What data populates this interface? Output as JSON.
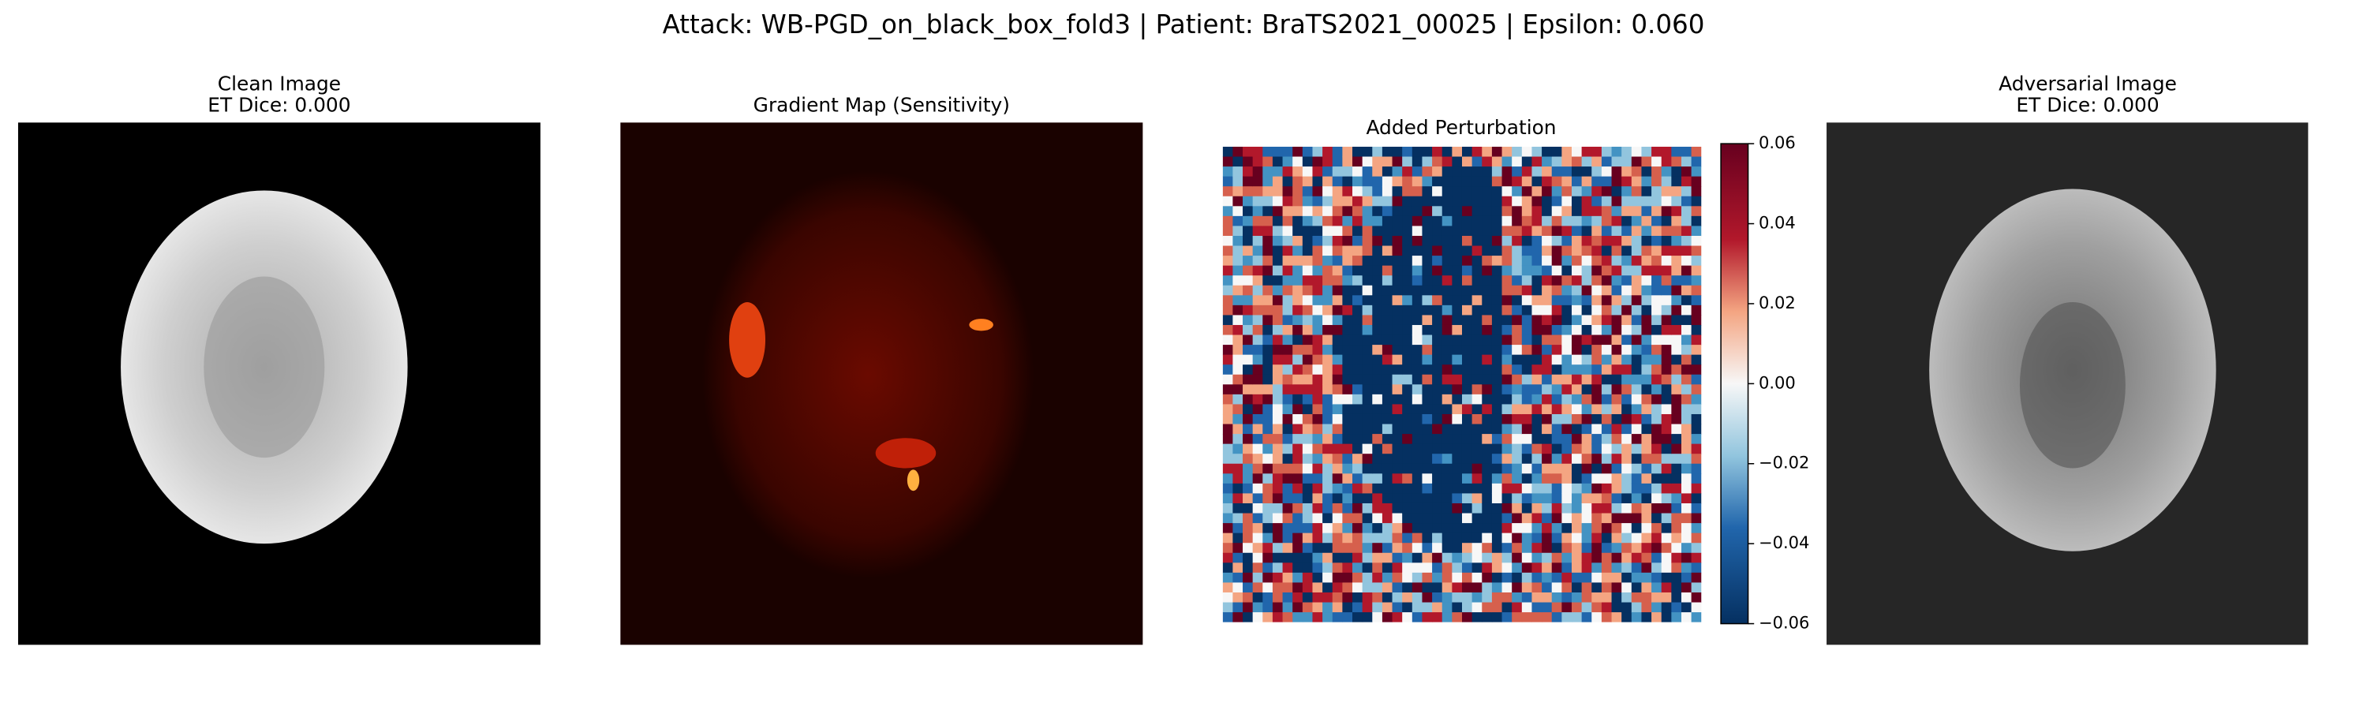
{
  "title": "Attack: WB-PGD_on_black_box_fold3 | Patient: BraTS2021_00025 | Epsilon: 0.060",
  "panels": [
    {
      "title": "Clean Image",
      "subtitle": "ET Dice: 0.000"
    },
    {
      "title": "Gradient Map (Sensitivity)"
    },
    {
      "title": "Added Perturbation",
      "colorbar": {
        "lim": [
          -0.06,
          0.06
        ],
        "ticks": [
          {
            "value": -0.06,
            "label": "−0.06"
          },
          {
            "value": -0.04,
            "label": "−0.04"
          },
          {
            "value": -0.02,
            "label": "−0.02"
          },
          {
            "value": 0,
            "label": "0.00"
          },
          0.02,
          0.04,
          0.06
        ]
      }
    },
    {
      "title": "Adversarial Image",
      "subtitle": "ET Dice: 0.000"
    }
  ]
}
